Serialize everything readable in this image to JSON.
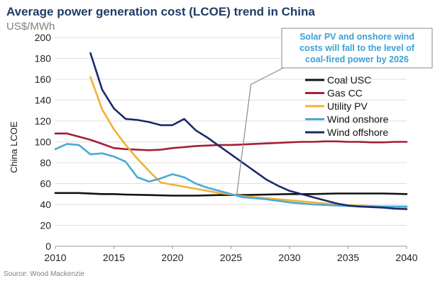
{
  "chart_data": {
    "type": "line",
    "title": "Average power generation cost (LCOE) trend in China",
    "unit": "US$/MWh",
    "ylabel": "China LCOE",
    "xlabel": "",
    "xlim": [
      2010,
      2040
    ],
    "ylim": [
      0,
      200
    ],
    "x_ticks": [
      2010,
      2015,
      2020,
      2025,
      2030,
      2035,
      2040
    ],
    "y_ticks": [
      0,
      20,
      40,
      60,
      80,
      100,
      120,
      140,
      160,
      180,
      200
    ],
    "grid": "horizontal",
    "legend_position": "right",
    "source": "Source: Wood Mackenzie",
    "annotation": {
      "lines": [
        "Solar PV and onshore wind",
        "costs will fall to the level of",
        "coal-fired power by 2026"
      ],
      "target": {
        "x": 2025.5,
        "y": 50
      },
      "elbow": {
        "x": 2026.7,
        "y": 155
      }
    },
    "series": [
      {
        "name": "Coal USC",
        "color": "#111111",
        "x": [
          2010,
          2012,
          2014,
          2015,
          2016,
          2018,
          2020,
          2022,
          2024,
          2026,
          2028,
          2030,
          2032,
          2034,
          2036,
          2038,
          2040
        ],
        "y": [
          51,
          51,
          50,
          50,
          49.5,
          49,
          48.5,
          48.5,
          49,
          49,
          49.5,
          50,
          50,
          50.5,
          50.5,
          50.5,
          50
        ]
      },
      {
        "name": "Gas CC",
        "color": "#a31f34",
        "x": [
          2010,
          2011,
          2012,
          2013,
          2014,
          2015,
          2016,
          2017,
          2018,
          2019,
          2020,
          2021,
          2022,
          2023,
          2024,
          2025,
          2026,
          2027,
          2028,
          2029,
          2030,
          2031,
          2032,
          2033,
          2034,
          2035,
          2036,
          2037,
          2038,
          2039,
          2040
        ],
        "y": [
          108,
          108,
          105,
          102,
          98,
          94,
          93,
          92.5,
          92,
          92.5,
          94,
          95,
          96,
          96.5,
          97,
          97,
          97.5,
          98,
          98.5,
          99,
          99.5,
          100,
          100,
          100.5,
          100.5,
          100,
          100,
          99.5,
          99.5,
          100,
          100
        ]
      },
      {
        "name": "Utility PV",
        "color": "#f2b134",
        "x": [
          2013,
          2014,
          2015,
          2016,
          2017,
          2018,
          2019,
          2020,
          2021,
          2022,
          2023,
          2024,
          2025,
          2026,
          2028,
          2030,
          2032,
          2034,
          2036,
          2038,
          2040
        ],
        "y": [
          162,
          131,
          112,
          97,
          84,
          72,
          61,
          59,
          57,
          55,
          53,
          51,
          49.5,
          48,
          46,
          44,
          42,
          40,
          39,
          38,
          37.5
        ]
      },
      {
        "name": "Wind onshore",
        "color": "#48a9d9",
        "x": [
          2010,
          2011,
          2012,
          2013,
          2014,
          2015,
          2016,
          2017,
          2018,
          2019,
          2020,
          2021,
          2022,
          2023,
          2024,
          2025,
          2026,
          2028,
          2030,
          2032,
          2034,
          2036,
          2038,
          2040
        ],
        "y": [
          93,
          98,
          97,
          88,
          89,
          86,
          81,
          66,
          62,
          65,
          69,
          66,
          60,
          56,
          53,
          50,
          47,
          45,
          42,
          40,
          39,
          38,
          38,
          38
        ]
      },
      {
        "name": "Wind offshore",
        "color": "#1b2a6b",
        "x": [
          2013,
          2014,
          2015,
          2016,
          2017,
          2018,
          2019,
          2020,
          2021,
          2022,
          2023,
          2024,
          2025,
          2026,
          2027,
          2028,
          2029,
          2030,
          2031,
          2032,
          2033,
          2034,
          2035,
          2036,
          2037,
          2038,
          2039,
          2040
        ],
        "y": [
          185,
          150,
          132,
          122,
          121,
          119,
          116,
          116,
          122,
          111,
          104,
          96,
          88,
          80,
          72,
          64,
          58,
          53,
          50,
          47,
          44,
          41,
          39,
          38,
          37.5,
          37,
          36,
          35.5
        ]
      }
    ]
  }
}
